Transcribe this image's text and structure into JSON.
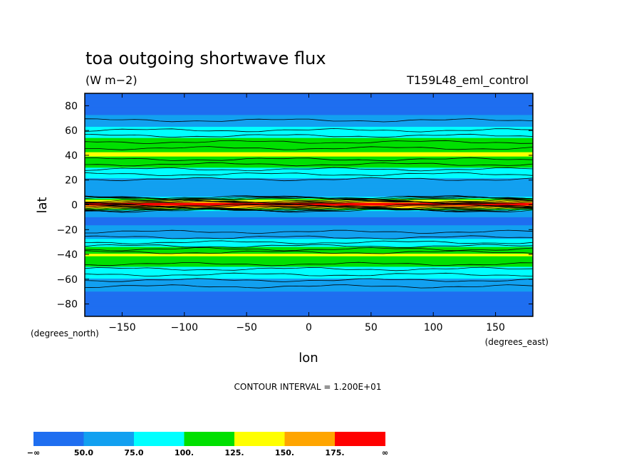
{
  "chart_data": {
    "type": "heatmap",
    "title": "toa outgoing shortwave flux",
    "units": "(W m−2)",
    "experiment": "T159L48_eml_control",
    "xlabel": "lon",
    "ylabel": "lat",
    "xunits": "(degrees_east)",
    "yunits": "(degrees_north)",
    "xlim": [
      -180,
      180
    ],
    "ylim": [
      -90,
      90
    ],
    "xticks": [
      -150,
      -100,
      -50,
      0,
      50,
      100,
      150
    ],
    "yticks": [
      80,
      60,
      40,
      20,
      0,
      -20,
      -40,
      -60,
      -80
    ],
    "contour_interval_label": "CONTOUR INTERVAL = 1.200E+01",
    "colorbar": {
      "labels": [
        "−∞",
        "50.0",
        "75.0",
        "100.",
        "125.",
        "150.",
        "175.",
        "∞"
      ],
      "colors": [
        "#1f6ef0",
        "#12a0f0",
        "#00ffff",
        "#00e000",
        "#ffff00",
        "#ffa500",
        "#ff0000"
      ]
    },
    "zonal_profile": [
      {
        "lat": 90,
        "value": 40
      },
      {
        "lat": 75,
        "value": 45
      },
      {
        "lat": 70,
        "value": 55
      },
      {
        "lat": 64,
        "value": 72
      },
      {
        "lat": 60,
        "value": 85
      },
      {
        "lat": 55,
        "value": 98
      },
      {
        "lat": 50,
        "value": 110
      },
      {
        "lat": 45,
        "value": 122
      },
      {
        "lat": 40,
        "value": 128
      },
      {
        "lat": 35,
        "value": 115
      },
      {
        "lat": 30,
        "value": 100
      },
      {
        "lat": 25,
        "value": 85
      },
      {
        "lat": 20,
        "value": 70
      },
      {
        "lat": 12,
        "value": 60
      },
      {
        "lat": 7,
        "value": 60
      },
      {
        "lat": 4,
        "value": 120
      },
      {
        "lat": 1,
        "value": 180
      },
      {
        "lat": 0,
        "value": 185
      },
      {
        "lat": -2,
        "value": 150
      },
      {
        "lat": -5,
        "value": 70
      },
      {
        "lat": -10,
        "value": 50
      },
      {
        "lat": -15,
        "value": 48
      },
      {
        "lat": -20,
        "value": 55
      },
      {
        "lat": -25,
        "value": 68
      },
      {
        "lat": -30,
        "value": 82
      },
      {
        "lat": -35,
        "value": 105
      },
      {
        "lat": -40,
        "value": 128
      },
      {
        "lat": -45,
        "value": 118
      },
      {
        "lat": -50,
        "value": 100
      },
      {
        "lat": -55,
        "value": 88
      },
      {
        "lat": -60,
        "value": 74
      },
      {
        "lat": -65,
        "value": 62
      },
      {
        "lat": -70,
        "value": 50
      },
      {
        "lat": -90,
        "value": 40
      }
    ]
  }
}
